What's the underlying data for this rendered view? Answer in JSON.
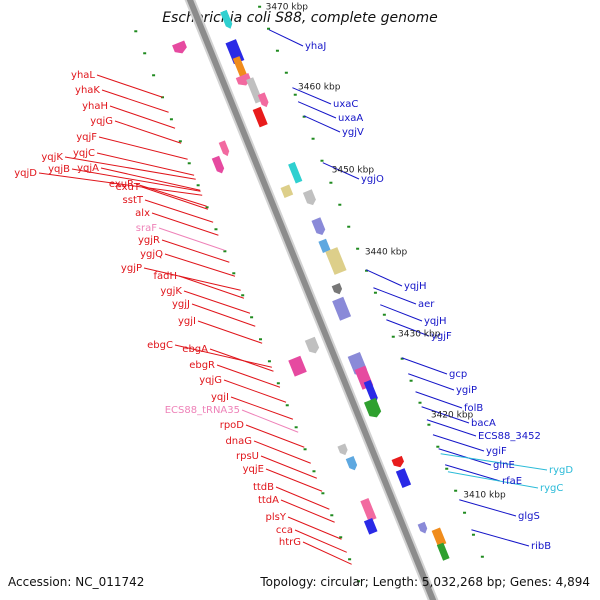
{
  "title": "Escherichia coli S88, complete genome",
  "footer": {
    "accession": "Accession: NC_011742",
    "summary": "Topology: circular; Length: 5,032,268 bp; Genes: 4,894"
  },
  "colors": {
    "left_labels": "#e0151b",
    "right_labels": "#1515c8",
    "rna_labels": "#ee82b8",
    "cyan_labels": "#2bbbd8",
    "backbone": "#8c8c8c",
    "tick_marks": "#1f8a1f"
  },
  "scale_labels": [
    {
      "id": "tick-3470",
      "text": "3470 kbp"
    },
    {
      "id": "tick-3460",
      "text": "3460 kbp"
    },
    {
      "id": "tick-3450",
      "text": "3450 kbp"
    },
    {
      "id": "tick-3440",
      "text": "3440 kbp"
    },
    {
      "id": "tick-3430",
      "text": "3430 kbp"
    },
    {
      "id": "tick-3420",
      "text": "3420 kbp"
    },
    {
      "id": "tick-3410",
      "text": "3410 kbp"
    }
  ],
  "left_genes": [
    "yhaL",
    "yhaK",
    "yhaH",
    "yqjG",
    "yqjF",
    "yqjC",
    "yqjK",
    "yqjB",
    "yqjD",
    "yqjA",
    "exuR",
    "exuT",
    "sstT",
    "alx",
    "sraF",
    "ygjR",
    "ygjQ",
    "ygjP",
    "fadH",
    "ygjK",
    "ygjJ",
    "ygjI",
    "ebgC",
    "ebgA",
    "ebgR",
    "yqjG",
    "yqjI",
    "ECS88_tRNA35",
    "rpoD",
    "dnaG",
    "rpsU",
    "yqjE",
    "ttdB",
    "ttdA",
    "plsY",
    "cca",
    "htrG"
  ],
  "right_genes": [
    "yhaJ",
    "uxaC",
    "uxaA",
    "ygjV",
    "ygjO",
    "yqjH",
    "aer",
    "yqjH",
    "ygjF",
    "gcp",
    "ygiP",
    "folB",
    "bacA",
    "ECS88_3452",
    "ygiF",
    "glnE",
    "rfaE",
    "rygD",
    "rygC",
    "glgS",
    "ribB"
  ]
}
